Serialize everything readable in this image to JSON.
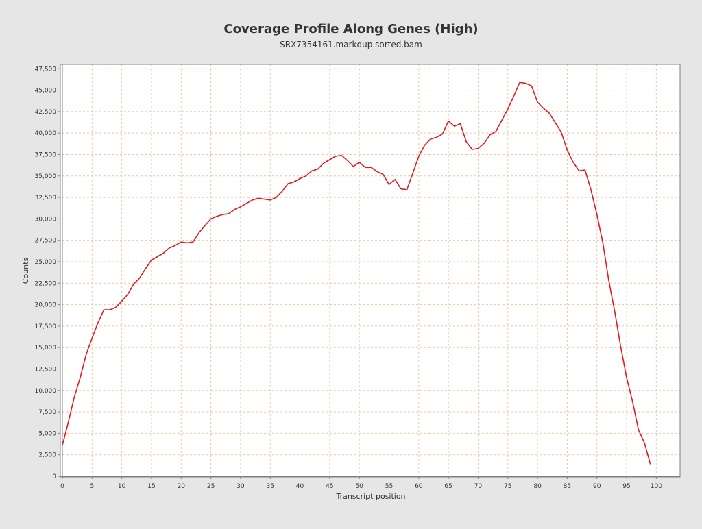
{
  "chart_data": {
    "type": "line",
    "title": "Coverage Profile Along Genes (High)",
    "subtitle": "SRX7354161.markdup.sorted.bam",
    "xlabel": "Transcript position",
    "ylabel": "Counts",
    "xlim": [
      0,
      104
    ],
    "ylim": [
      0,
      48000
    ],
    "x_ticks": [
      0,
      5,
      10,
      15,
      20,
      25,
      30,
      35,
      40,
      45,
      50,
      55,
      60,
      65,
      70,
      75,
      80,
      85,
      90,
      95,
      100
    ],
    "y_ticks": [
      0,
      2500,
      5000,
      7500,
      10000,
      12500,
      15000,
      17500,
      20000,
      22500,
      25000,
      27500,
      30000,
      32500,
      35000,
      37500,
      40000,
      42500,
      45000,
      47500
    ],
    "x_tick_labels": [
      "0",
      "5",
      "10",
      "15",
      "20",
      "25",
      "30",
      "35",
      "40",
      "45",
      "50",
      "55",
      "60",
      "65",
      "70",
      "75",
      "80",
      "85",
      "90",
      "95",
      "100"
    ],
    "y_tick_labels": [
      "0",
      "2,500",
      "5,000",
      "7,500",
      "10,000",
      "12,500",
      "15,000",
      "17,500",
      "20,000",
      "22,500",
      "25,000",
      "27,500",
      "30,000",
      "32,500",
      "35,000",
      "37,500",
      "40,000",
      "42,500",
      "45,000",
      "47,500"
    ],
    "grid": true,
    "colors": {
      "background": "#e6e6e6",
      "plot_background": "#ffffff",
      "grid": "#f4c4a0",
      "line": "#e31a1c",
      "axis": "#808080",
      "text": "#333333"
    },
    "series": [
      {
        "x": [
          0,
          1,
          2,
          3,
          4,
          5,
          6,
          7,
          8,
          9,
          10,
          11,
          12,
          13,
          14,
          15,
          16,
          17,
          18,
          19,
          20,
          21,
          22,
          23,
          24,
          25,
          26,
          27,
          28,
          29,
          30,
          31,
          32,
          33,
          34,
          35,
          36,
          37,
          38,
          39,
          40,
          41,
          42,
          43,
          44,
          45,
          46,
          47,
          48,
          49,
          50,
          51,
          52,
          53,
          54,
          55,
          56,
          57,
          58,
          59,
          60,
          61,
          62,
          63,
          64,
          65,
          66,
          67,
          68,
          69,
          70,
          71,
          72,
          73,
          74,
          75,
          76,
          77,
          78,
          79,
          80,
          81,
          82,
          83,
          84,
          85,
          86,
          87,
          88,
          89,
          90,
          91,
          92,
          93,
          94,
          95,
          96,
          97,
          98,
          99
        ],
        "values": [
          3600,
          6300,
          9200,
          11500,
          14200,
          16100,
          17900,
          19400,
          19400,
          19700,
          20400,
          21200,
          22400,
          23100,
          24200,
          25200,
          25600,
          26000,
          26600,
          26900,
          27300,
          27200,
          27300,
          28400,
          29200,
          30000,
          30300,
          30500,
          30600,
          31100,
          31400,
          31800,
          32200,
          32400,
          32300,
          32200,
          32500,
          33200,
          34100,
          34300,
          34700,
          35000,
          35600,
          35800,
          36500,
          36900,
          37300,
          37400,
          36800,
          36100,
          36600,
          36000,
          36000,
          35500,
          35200,
          34000,
          34600,
          33500,
          33400,
          35300,
          37300,
          38600,
          39300,
          39500,
          39900,
          41400,
          40800,
          41100,
          39000,
          38100,
          38200,
          38800,
          39800,
          40200,
          41500,
          42800,
          44300,
          45900,
          45800,
          45500,
          43600,
          42900,
          42300,
          41200,
          40100,
          38000,
          36600,
          35600,
          35700,
          33400,
          30500,
          27200,
          22800,
          19200,
          15100,
          11500,
          8700,
          5400,
          3900,
          1400
        ]
      }
    ]
  }
}
